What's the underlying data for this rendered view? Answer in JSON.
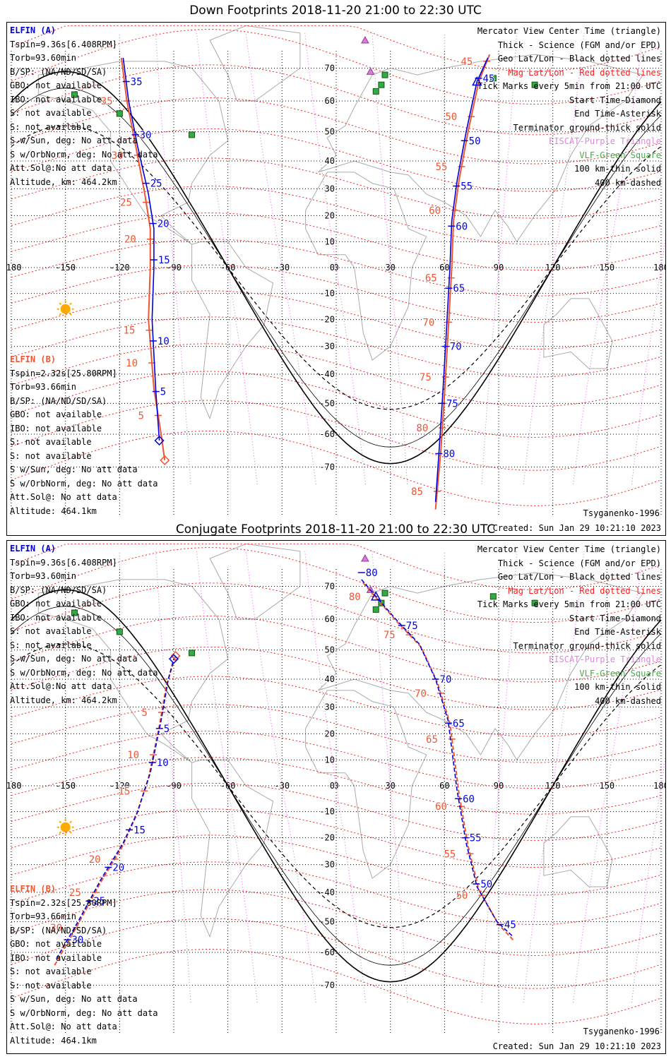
{
  "panels": [
    {
      "id": "down",
      "title": "Down Footprints 2018-11-20 21:00 to 22:30 UTC",
      "sat_a": {
        "name": "ELFIN (A)",
        "lines": [
          "Tspin=9.36s[6.408RPM]",
          "Torb=93.60min",
          "B/SP: (NA/ND/SD/SA)",
          "GBO: not available",
          "IBO: not available",
          "S: not available",
          "S: not available",
          "S w/Sun, deg: No att data",
          "S w/OrbNorm, deg: No att data",
          "Att.Sol@:No att data",
          "Altitude, km: 464.2km"
        ]
      },
      "sat_b": {
        "name": "ELFIN (B)",
        "lines": [
          "Tspin=2.32s[25.80RPM]",
          "Torb=93.66min",
          "B/SP: (NA/ND/SD/SA)",
          "GBO: not available",
          "IBO: not available",
          "S: not available",
          "S: not available",
          "S w/Sun, deg: No att data",
          "S w/OrbNorm, deg: No att data",
          "Att.Sol@: No att data",
          "Altitude: 464.1km"
        ]
      },
      "model": "Tsyganenko-1996",
      "created": "Created: Sun Jan 29 10:21:10 2023"
    },
    {
      "id": "conjugate",
      "title": "Conjugate Footprints 2018-11-20 21:00 to 22:30 UTC",
      "sat_a": {
        "name": "ELFIN (A)",
        "lines": [
          "Tspin=9.36s[6.408RPM]",
          "Torb=93.60min",
          "B/SP: (NA/ND/SD/SA)",
          "GBO: not available",
          "IBO: not available",
          "S: not available",
          "S: not available",
          "S w/Sun, deg: No att data",
          "S w/OrbNorm, deg: No att data",
          "Att.Sol@:No att data",
          "Altitude, km: 464.2km"
        ]
      },
      "sat_b": {
        "name": "ELFIN (B)",
        "lines": [
          "Tspin=2.32s[25.80RPM]",
          "Torb=93.66min",
          "B/SP: (NA/ND/SD/SA)",
          "GBO: not available",
          "IBO: not available",
          "S: not available",
          "S: not available",
          "S w/Sun, deg: No att data",
          "S w/OrbNorm, deg: No att data",
          "Att.Sol@: No att data",
          "Altitude: 464.1km"
        ]
      },
      "model": "Tsyganenko-1996",
      "created": "Created: Sun Jan 29 10:21:10 2023"
    }
  ],
  "legend": [
    {
      "text": "Mercator View Center Time (triangle)",
      "color": "#000000"
    },
    {
      "text": "Thick - Science (FGM and/or EPD)",
      "color": "#000000"
    },
    {
      "text": "Geo Lat/Lon - Black dotted lines",
      "color": "#000000"
    },
    {
      "text": "Mag Lat/Lon - Red dotted lines",
      "color": "#ee2222"
    },
    {
      "text": "Tick Marks every 5min from 21:00 UTC",
      "color": "#000000"
    },
    {
      "text": "Start Time-Diamond",
      "color": "#000000"
    },
    {
      "text": "End Time-Asterisk",
      "color": "#000000"
    },
    {
      "text": "Terminator ground-thick solid",
      "color": "#000000"
    },
    {
      "text": "EISCAT-Purple Triangle",
      "color": "#dd88dd"
    },
    {
      "text": "VLF-Green Square",
      "color": "#44aa44"
    },
    {
      "text": "100 km-thin solid",
      "color": "#000000"
    },
    {
      "text": "400 km-dashed",
      "color": "#000000"
    }
  ],
  "map": {
    "lon_ticks": [
      "-180",
      "-150",
      "-120",
      "-90",
      "-60",
      "-30",
      "0",
      "30",
      "60",
      "90",
      "120",
      "150",
      "180"
    ],
    "lat_ticks": [
      "70",
      "60",
      "50",
      "40",
      "30",
      "20",
      "10",
      "0",
      "-10",
      "-20",
      "-30",
      "-40",
      "-50",
      "-60",
      "-70"
    ],
    "colors": {
      "sat_a": "#0000dd",
      "sat_b": "#ee5533",
      "mag_grid": "#ee2222",
      "geo_grid": "#000000",
      "vlf": "#33aa44",
      "eiscat": "#dd77dd",
      "sun": "#ffaa00"
    }
  },
  "tracks": {
    "down": {
      "a": {
        "points": [
          [
            -118,
            73
          ],
          [
            -115,
            60
          ],
          [
            -110,
            45
          ],
          [
            -104,
            28
          ],
          [
            -101,
            15
          ],
          [
            -101,
            0
          ],
          [
            -102,
            -20
          ],
          [
            -100,
            -45
          ],
          [
            -98,
            -62
          ]
        ],
        "ticks": [
          {
            "label": "35",
            "lat": 66
          },
          {
            "label": "30",
            "lat": 49
          },
          {
            "label": "25",
            "lat": 32
          },
          {
            "label": "20",
            "lat": 17
          },
          {
            "label": "15",
            "lat": 3
          },
          {
            "label": "10",
            "lat": -28
          },
          {
            "label": "5",
            "lat": -46
          }
        ]
      },
      "b": {
        "points": [
          [
            -119,
            73
          ],
          [
            -116,
            60
          ],
          [
            -111,
            45
          ],
          [
            -106,
            28
          ],
          [
            -103,
            15
          ],
          [
            -103,
            0
          ],
          [
            -104,
            -20
          ],
          [
            -101,
            -45
          ],
          [
            -97,
            -60
          ],
          [
            -95,
            -68
          ]
        ],
        "ticks": [
          {
            "label": "35",
            "lat": 60
          },
          {
            "label": "30",
            "lat": 42
          },
          {
            "label": "25",
            "lat": 25
          },
          {
            "label": "20",
            "lat": 11
          },
          {
            "label": "15",
            "lat": -24
          },
          {
            "label": "10",
            "lat": -36
          },
          {
            "label": "5",
            "lat": -54
          }
        ]
      },
      "a2": {
        "points": [
          [
            84,
            73
          ],
          [
            78,
            66
          ],
          [
            72,
            50
          ],
          [
            67,
            33
          ],
          [
            64,
            18
          ],
          [
            63,
            0
          ],
          [
            61,
            -25
          ],
          [
            59,
            -47
          ],
          [
            57,
            -65
          ],
          [
            55,
            -80
          ]
        ],
        "ticks": [
          {
            "label": "45",
            "lat": 67
          },
          {
            "label": "50",
            "lat": 47
          },
          {
            "label": "55",
            "lat": 31
          },
          {
            "label": "60",
            "lat": 16
          },
          {
            "label": "65",
            "lat": -8
          },
          {
            "label": "70",
            "lat": -30
          },
          {
            "label": "75",
            "lat": -50
          },
          {
            "label": "80",
            "lat": -66
          }
        ]
      },
      "b2": {
        "points": [
          [
            85,
            74
          ],
          [
            79,
            66
          ],
          [
            73,
            50
          ],
          [
            68,
            33
          ],
          [
            65,
            18
          ],
          [
            64,
            0
          ],
          [
            62,
            -25
          ],
          [
            60,
            -47
          ],
          [
            58,
            -65
          ],
          [
            55,
            -82
          ]
        ],
        "ticks": [
          {
            "label": "45",
            "lat": 72
          },
          {
            "label": "50",
            "lat": 55
          },
          {
            "label": "55",
            "lat": 38
          },
          {
            "label": "60",
            "lat": 22
          },
          {
            "label": "65",
            "lat": -4
          },
          {
            "label": "70",
            "lat": -21
          },
          {
            "label": "75",
            "lat": -41
          },
          {
            "label": "80",
            "lat": -58
          },
          {
            "label": "85",
            "lat": -77
          }
        ]
      }
    },
    "conjugate": {
      "a": {
        "points": [
          [
            -155,
            -62
          ],
          [
            -143,
            -50
          ],
          [
            -130,
            -35
          ],
          [
            -118,
            -22
          ],
          [
            -110,
            -10
          ],
          [
            -103,
            5
          ],
          [
            -97,
            25
          ],
          [
            -93,
            40
          ],
          [
            -90,
            47
          ]
        ],
        "ticks": [
          {
            "label": "30",
            "lat": -56
          },
          {
            "label": "25",
            "lat": -43
          },
          {
            "label": "20",
            "lat": -31
          },
          {
            "label": "15",
            "lat": -17
          },
          {
            "label": "10",
            "lat": 9
          },
          {
            "label": "5",
            "lat": 22
          }
        ]
      },
      "b": {
        "points": [
          [
            -156,
            -64
          ],
          [
            -144,
            -52
          ],
          [
            -131,
            -37
          ],
          [
            -119,
            -24
          ],
          [
            -111,
            -12
          ],
          [
            -104,
            3
          ],
          [
            -98,
            23
          ],
          [
            -94,
            38
          ],
          [
            -89,
            48
          ]
        ],
        "ticks": [
          {
            "label": "30",
            "lat": -52
          },
          {
            "label": "25",
            "lat": -40
          },
          {
            "label": "20",
            "lat": -28
          },
          {
            "label": "15",
            "lat": -2
          },
          {
            "label": "10",
            "lat": 12
          },
          {
            "label": "5",
            "lat": 28
          }
        ]
      },
      "a2": {
        "points": [
          [
            14,
            72
          ],
          [
            22,
            67
          ],
          [
            33,
            60
          ],
          [
            46,
            52
          ],
          [
            55,
            40
          ],
          [
            62,
            25
          ],
          [
            67,
            -2
          ],
          [
            72,
            -22
          ],
          [
            78,
            -38
          ],
          [
            89,
            -50
          ],
          [
            98,
            -55
          ]
        ],
        "ticks": [
          {
            "label": "80",
            "lat": 74
          },
          {
            "label": "75",
            "lat": 58
          },
          {
            "label": "70",
            "lat": 40
          },
          {
            "label": "65",
            "lat": 24
          },
          {
            "label": "60",
            "lat": -5
          },
          {
            "label": "55",
            "lat": -20
          },
          {
            "label": "50",
            "lat": -37
          },
          {
            "label": "45",
            "lat": -51
          }
        ]
      },
      "b2": {
        "points": [
          [
            15,
            71
          ],
          [
            23,
            66
          ],
          [
            34,
            59
          ],
          [
            47,
            51
          ],
          [
            56,
            39
          ],
          [
            63,
            24
          ],
          [
            68,
            -3
          ],
          [
            73,
            -23
          ],
          [
            79,
            -39
          ],
          [
            90,
            -51
          ],
          [
            98,
            -56
          ]
        ],
        "ticks": [
          {
            "label": "80",
            "lat": 67
          },
          {
            "label": "75",
            "lat": 55
          },
          {
            "label": "70",
            "lat": 35
          },
          {
            "label": "65",
            "lat": 18
          },
          {
            "label": "60",
            "lat": -8
          },
          {
            "label": "55",
            "lat": -26
          },
          {
            "label": "50",
            "lat": -41
          }
        ]
      }
    }
  },
  "stations": {
    "vlf": [
      [
        -145,
        62
      ],
      [
        -120,
        56
      ],
      [
        -80,
        49
      ],
      [
        27,
        68
      ],
      [
        25,
        65
      ],
      [
        22,
        63
      ],
      [
        87,
        67
      ],
      [
        110,
        65
      ]
    ],
    "eiscat": [
      [
        16,
        78
      ],
      [
        19,
        69
      ]
    ]
  },
  "sun_position": [
    -150,
    -16
  ]
}
